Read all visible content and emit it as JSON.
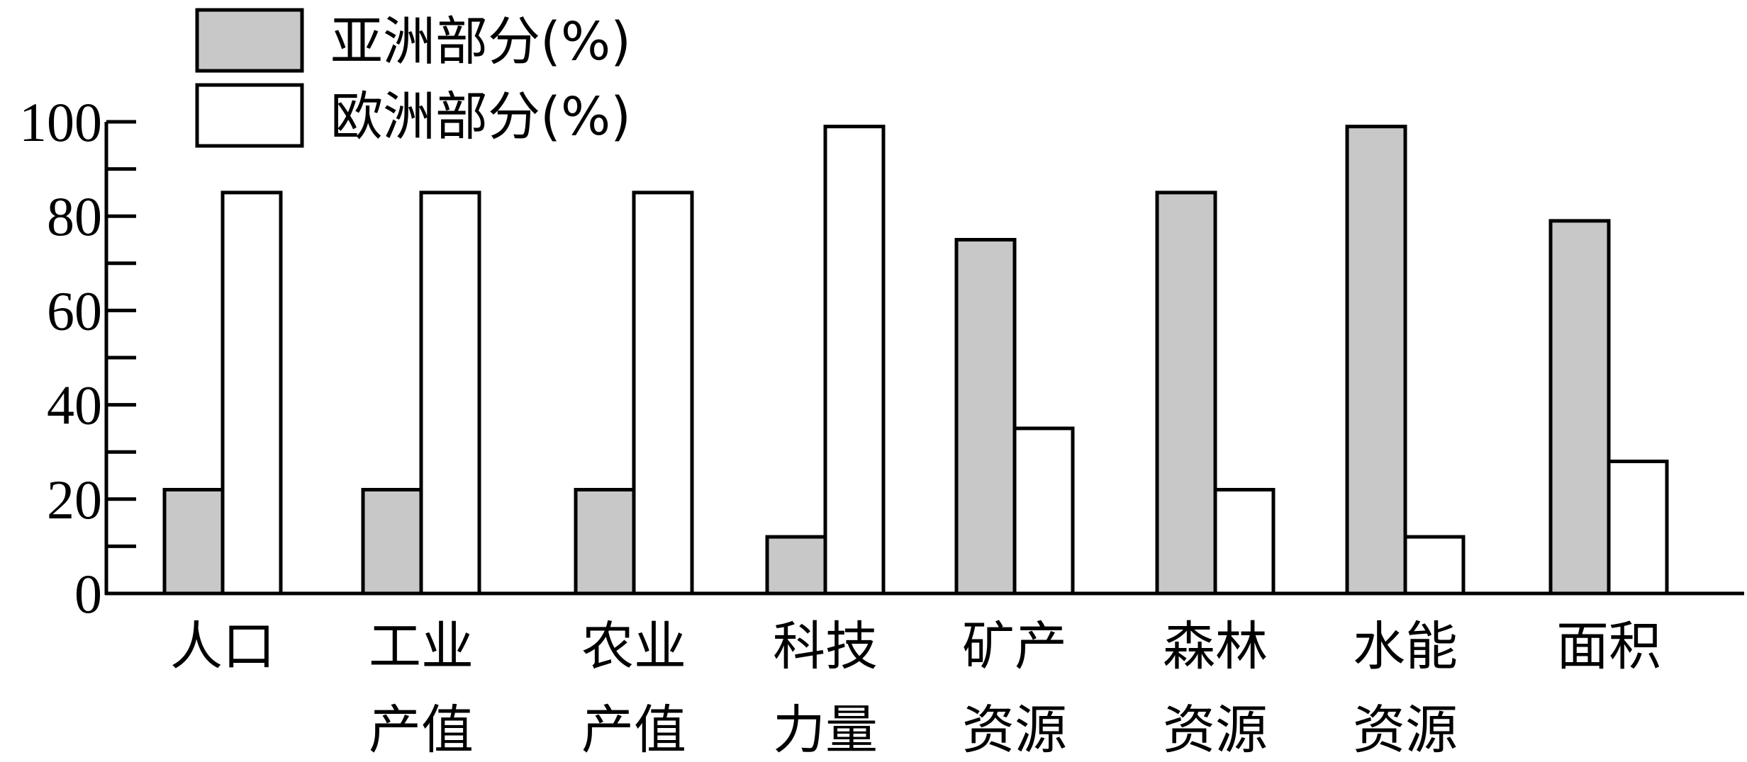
{
  "chart_data": {
    "type": "bar",
    "categories": [
      [
        "人口"
      ],
      [
        "工业",
        "产值"
      ],
      [
        "农业",
        "产值"
      ],
      [
        "科技",
        "力量"
      ],
      [
        "矿产",
        "资源"
      ],
      [
        "森林",
        "资源"
      ],
      [
        "水能",
        "资源"
      ],
      [
        "面积"
      ]
    ],
    "series": [
      {
        "name": "亚洲部分(%)",
        "fill": "#c8c8c8",
        "values": [
          22,
          22,
          22,
          12,
          75,
          85,
          99,
          79
        ]
      },
      {
        "name": "欧洲部分(%)",
        "fill": "#ffffff",
        "values": [
          85,
          85,
          85,
          99,
          35,
          22,
          12,
          28
        ]
      }
    ],
    "ylim": [
      0,
      100
    ],
    "yticks": [
      0,
      20,
      40,
      60,
      80,
      100
    ],
    "minor_ticks": true,
    "grid": false,
    "legend_position": "top-left"
  }
}
